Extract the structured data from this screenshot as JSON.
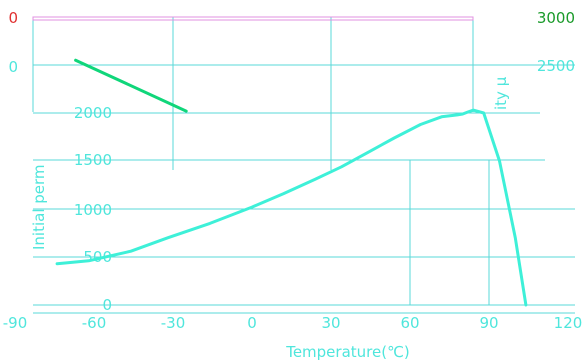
{
  "chart_data": {
    "type": "line",
    "xlabel": "Temperature(℃)",
    "ylabel_left": "Initial perm",
    "ylabel_right": "ity μ",
    "x_ticks": [
      "-90",
      "-60",
      "-30",
      "0",
      "30",
      "60",
      "90",
      "120"
    ],
    "xlim": [
      -90,
      120
    ],
    "y_left_ticks": [
      "0",
      "500",
      "1000",
      "1500",
      "2000",
      "2500",
      "3000"
    ],
    "y_left_ticks_label_top": "0",
    "ylim_left": [
      0,
      3000
    ],
    "y_right_ticks": [
      "2500",
      "3000"
    ],
    "grid": true,
    "series": [
      {
        "x": [
          -74,
          -62,
          -46,
          -32,
          -16,
          0,
          12,
          24,
          34,
          44,
          54,
          64,
          72,
          78,
          80,
          82,
          84,
          88,
          94,
          100,
          104
        ],
        "y": [
          430,
          460,
          560,
          700,
          850,
          1020,
          1160,
          1310,
          1440,
          1590,
          1740,
          1880,
          1960,
          1980,
          1990,
          2010,
          2030,
          2000,
          1500,
          700,
          0
        ]
      },
      {
        "x": [
          -67,
          -25
        ],
        "y": [
          2550,
          2020
        ]
      }
    ]
  }
}
